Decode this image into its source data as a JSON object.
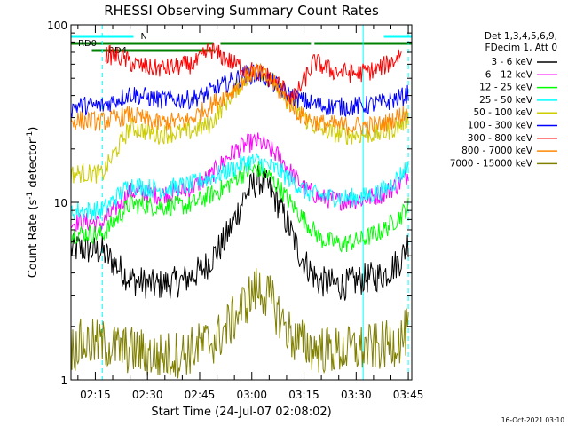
{
  "chart_data": {
    "type": "line",
    "title": "RHESSI Observing Summary Count Rates",
    "xlabel": "Start Time (24-Jul-07 02:08:02)",
    "ylabel": "Count Rate (s⁻¹ detector⁻¹)",
    "ylabel_parts": {
      "main": "Count Rate (s",
      "sup1": "-1",
      "mid": " detector",
      "sup2": "-1",
      "end": ")"
    },
    "y_scale": "log",
    "ylim": [
      1,
      100
    ],
    "y_ticks": [
      "1",
      "10",
      "100"
    ],
    "xlim_minutes": [
      8,
      106
    ],
    "x_ticks": [
      {
        "label": "02:15",
        "min": 15
      },
      {
        "label": "02:30",
        "min": 30
      },
      {
        "label": "02:45",
        "min": 45
      },
      {
        "label": "03:00",
        "min": 60
      },
      {
        "label": "03:15",
        "min": 75
      },
      {
        "label": "03:30",
        "min": 90
      },
      {
        "label": "03:45",
        "min": 105
      }
    ],
    "legend_header": [
      "Det 1,3,4,5,6,9,",
      "FDecim 1, Att 0"
    ],
    "timestamp": "16-Oct-2021 03:10",
    "series": [
      {
        "name": "3 - 6 keV",
        "color": "#000000",
        "values": [
          [
            8,
            5.4
          ],
          [
            10,
            5.5
          ],
          [
            17,
            5.3
          ],
          [
            25,
            3.7
          ],
          [
            32,
            3.4
          ],
          [
            40,
            3.6
          ],
          [
            46,
            4.2
          ],
          [
            52,
            6
          ],
          [
            55,
            8
          ],
          [
            58,
            11
          ],
          [
            62,
            13.5
          ],
          [
            65,
            12
          ],
          [
            68,
            9.5
          ],
          [
            71,
            7
          ],
          [
            74,
            5
          ],
          [
            79,
            3.6
          ],
          [
            86,
            3.4
          ],
          [
            92,
            3.7
          ],
          [
            98,
            3.9
          ],
          [
            103,
            4.8
          ],
          [
            105,
            6
          ]
        ]
      },
      {
        "name": "6 - 12 keV",
        "color": "#ff00ff",
        "values": [
          [
            8,
            7.6
          ],
          [
            10,
            7.8
          ],
          [
            17,
            7.6
          ],
          [
            25,
            11.5
          ],
          [
            33,
            11
          ],
          [
            42,
            11.8
          ],
          [
            48,
            14
          ],
          [
            53,
            18
          ],
          [
            56,
            20
          ],
          [
            59,
            21.5
          ],
          [
            62,
            22
          ],
          [
            65,
            20
          ],
          [
            68,
            18
          ],
          [
            71,
            15
          ],
          [
            75,
            12
          ],
          [
            80,
            10.6
          ],
          [
            86,
            10.2
          ],
          [
            92,
            10.4
          ],
          [
            98,
            11.2
          ],
          [
            103,
            13
          ],
          [
            105,
            14.5
          ]
        ]
      },
      {
        "name": "12 - 25 keV",
        "color": "#00ff00",
        "values": [
          [
            8,
            6.6
          ],
          [
            10,
            6.7
          ],
          [
            17,
            6.6
          ],
          [
            25,
            9.8
          ],
          [
            33,
            9.5
          ],
          [
            42,
            9.6
          ],
          [
            46,
            10.5
          ],
          [
            52,
            12
          ],
          [
            56,
            14
          ],
          [
            59,
            15
          ],
          [
            62,
            15.4
          ],
          [
            65,
            14
          ],
          [
            68,
            12
          ],
          [
            71,
            10
          ],
          [
            75,
            8
          ],
          [
            80,
            6.2
          ],
          [
            86,
            5.8
          ],
          [
            92,
            6.2
          ],
          [
            98,
            7
          ],
          [
            103,
            8.5
          ],
          [
            105,
            9.5
          ]
        ]
      },
      {
        "name": "25 - 50 keV",
        "color": "#00ffff",
        "values": [
          [
            8,
            8.9
          ],
          [
            10,
            9
          ],
          [
            17,
            9
          ],
          [
            25,
            12.6
          ],
          [
            33,
            11.8
          ],
          [
            42,
            12.5
          ],
          [
            48,
            13.8
          ],
          [
            53,
            15
          ],
          [
            56,
            16
          ],
          [
            59,
            17
          ],
          [
            62,
            17
          ],
          [
            65,
            16
          ],
          [
            68,
            15
          ],
          [
            72,
            13
          ],
          [
            76,
            11.3
          ],
          [
            81,
            10.8
          ],
          [
            87,
            10.6
          ],
          [
            93,
            10.8
          ],
          [
            99,
            12
          ],
          [
            103,
            14.5
          ],
          [
            105,
            16
          ]
        ]
      },
      {
        "name": "50 - 100 keV",
        "color": "#cccc00",
        "values": [
          [
            8,
            14.3
          ],
          [
            10,
            14.6
          ],
          [
            17,
            14.4
          ],
          [
            25,
            26.5
          ],
          [
            33,
            24
          ],
          [
            42,
            25
          ],
          [
            48,
            27.5
          ],
          [
            54,
            40
          ],
          [
            58,
            50
          ],
          [
            61,
            55
          ],
          [
            63,
            54
          ],
          [
            66,
            48
          ],
          [
            70,
            38
          ],
          [
            74,
            31
          ],
          [
            79,
            26
          ],
          [
            86,
            24
          ],
          [
            92,
            24
          ],
          [
            98,
            24.5
          ],
          [
            103,
            27.5
          ],
          [
            105,
            30
          ]
        ]
      },
      {
        "name": "100 - 300 keV",
        "color": "#0000ff",
        "values": [
          [
            8,
            34
          ],
          [
            10,
            35
          ],
          [
            17,
            35
          ],
          [
            25,
            41
          ],
          [
            33,
            38
          ],
          [
            42,
            38
          ],
          [
            46,
            40
          ],
          [
            53,
            47
          ],
          [
            58,
            52
          ],
          [
            61,
            53
          ],
          [
            63,
            52
          ],
          [
            66,
            47
          ],
          [
            71,
            40
          ],
          [
            75,
            37
          ],
          [
            80,
            35
          ],
          [
            86,
            34.5
          ],
          [
            92,
            35
          ],
          [
            98,
            36.5
          ],
          [
            103,
            39
          ],
          [
            105,
            41
          ]
        ]
      },
      {
        "name": "300 - 800 keV",
        "color": "#ff0000",
        "values": [
          [
            18,
            68
          ],
          [
            22,
            66
          ],
          [
            26,
            60
          ],
          [
            31,
            57
          ],
          [
            36,
            57
          ],
          [
            41,
            59
          ],
          [
            44,
            61
          ],
          [
            46,
            66
          ],
          [
            48,
            73
          ],
          [
            55,
            60
          ],
          [
            60,
            55
          ],
          [
            64,
            52
          ],
          [
            68,
            46
          ],
          [
            72,
            38
          ],
          [
            78,
            62
          ],
          [
            83,
            55
          ],
          [
            90,
            53
          ],
          [
            96,
            56
          ],
          [
            101,
            63
          ],
          [
            103,
            71
          ]
        ]
      },
      {
        "name": "800 - 7000 keV",
        "color": "#ff8800",
        "values": [
          [
            8,
            28.5
          ],
          [
            10,
            29
          ],
          [
            17,
            28.5
          ],
          [
            25,
            31
          ],
          [
            33,
            28
          ],
          [
            42,
            29
          ],
          [
            48,
            35
          ],
          [
            54,
            42
          ],
          [
            58,
            50
          ],
          [
            61,
            55
          ],
          [
            63,
            53
          ],
          [
            66,
            47
          ],
          [
            70,
            38
          ],
          [
            74,
            31
          ],
          [
            79,
            28
          ],
          [
            86,
            27
          ],
          [
            92,
            27
          ],
          [
            98,
            27.5
          ],
          [
            103,
            31
          ],
          [
            105,
            33
          ]
        ]
      },
      {
        "name": "7000 - 15000 keV",
        "color": "#808000",
        "values": [
          [
            8,
            1.5
          ],
          [
            10,
            1.6
          ],
          [
            17,
            1.6
          ],
          [
            22,
            1.5
          ],
          [
            27,
            1.45
          ],
          [
            33,
            1.35
          ],
          [
            40,
            1.4
          ],
          [
            45,
            1.55
          ],
          [
            50,
            1.7
          ],
          [
            54,
            2.1
          ],
          [
            58,
            2.7
          ],
          [
            61,
            3.2
          ],
          [
            63,
            3.2
          ],
          [
            66,
            2.7
          ],
          [
            69,
            2.1
          ],
          [
            72,
            1.7
          ],
          [
            78,
            1.5
          ],
          [
            85,
            1.45
          ],
          [
            92,
            1.5
          ],
          [
            98,
            1.55
          ],
          [
            103,
            1.7
          ],
          [
            105,
            1.9
          ]
        ]
      }
    ],
    "annotations": [
      {
        "label": "N",
        "color": "#00ffff",
        "segments": [
          [
            8,
            26
          ],
          [
            98,
            106
          ]
        ]
      },
      {
        "label": "RD0",
        "color": "#008000",
        "segments": [
          [
            8,
            49
          ],
          [
            51,
            77
          ],
          [
            78,
            106
          ]
        ]
      },
      {
        "label": "RD4",
        "color": "#008000",
        "segments": [
          [
            14,
            49
          ]
        ]
      }
    ],
    "vlines": [
      {
        "min": 8,
        "style": "solid",
        "color": "#00ffff"
      },
      {
        "min": 17,
        "style": "dashed",
        "color": "#00ffff"
      },
      {
        "min": 92,
        "style": "solid",
        "color": "#00ffff"
      },
      {
        "min": 105,
        "style": "dashed",
        "color": "#00ffff"
      }
    ],
    "grid": false,
    "legend_position": "right"
  }
}
